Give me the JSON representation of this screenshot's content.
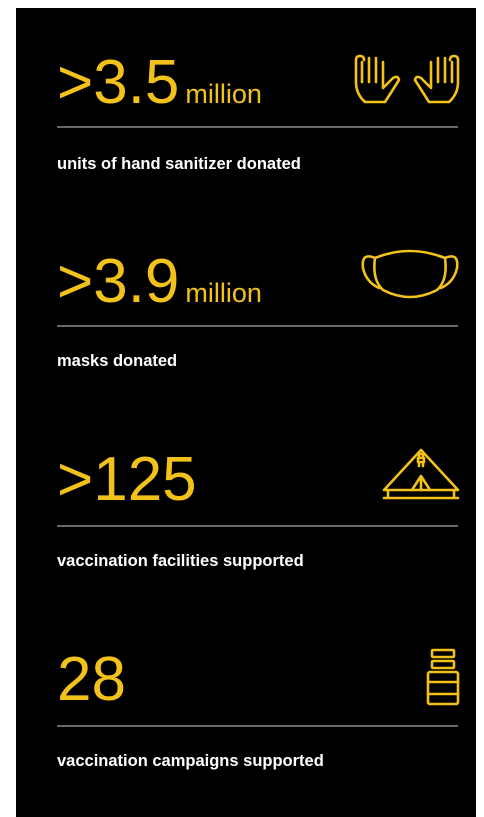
{
  "stats": [
    {
      "value": ">3.5",
      "unit": "million",
      "label": "units of hand sanitizer donated"
    },
    {
      "value": ">3.9",
      "unit": "million",
      "label": "masks donated"
    },
    {
      "value": ">125",
      "label": "vaccination facilities supported"
    },
    {
      "value": "28",
      "label": "vaccination campaigns supported"
    }
  ]
}
